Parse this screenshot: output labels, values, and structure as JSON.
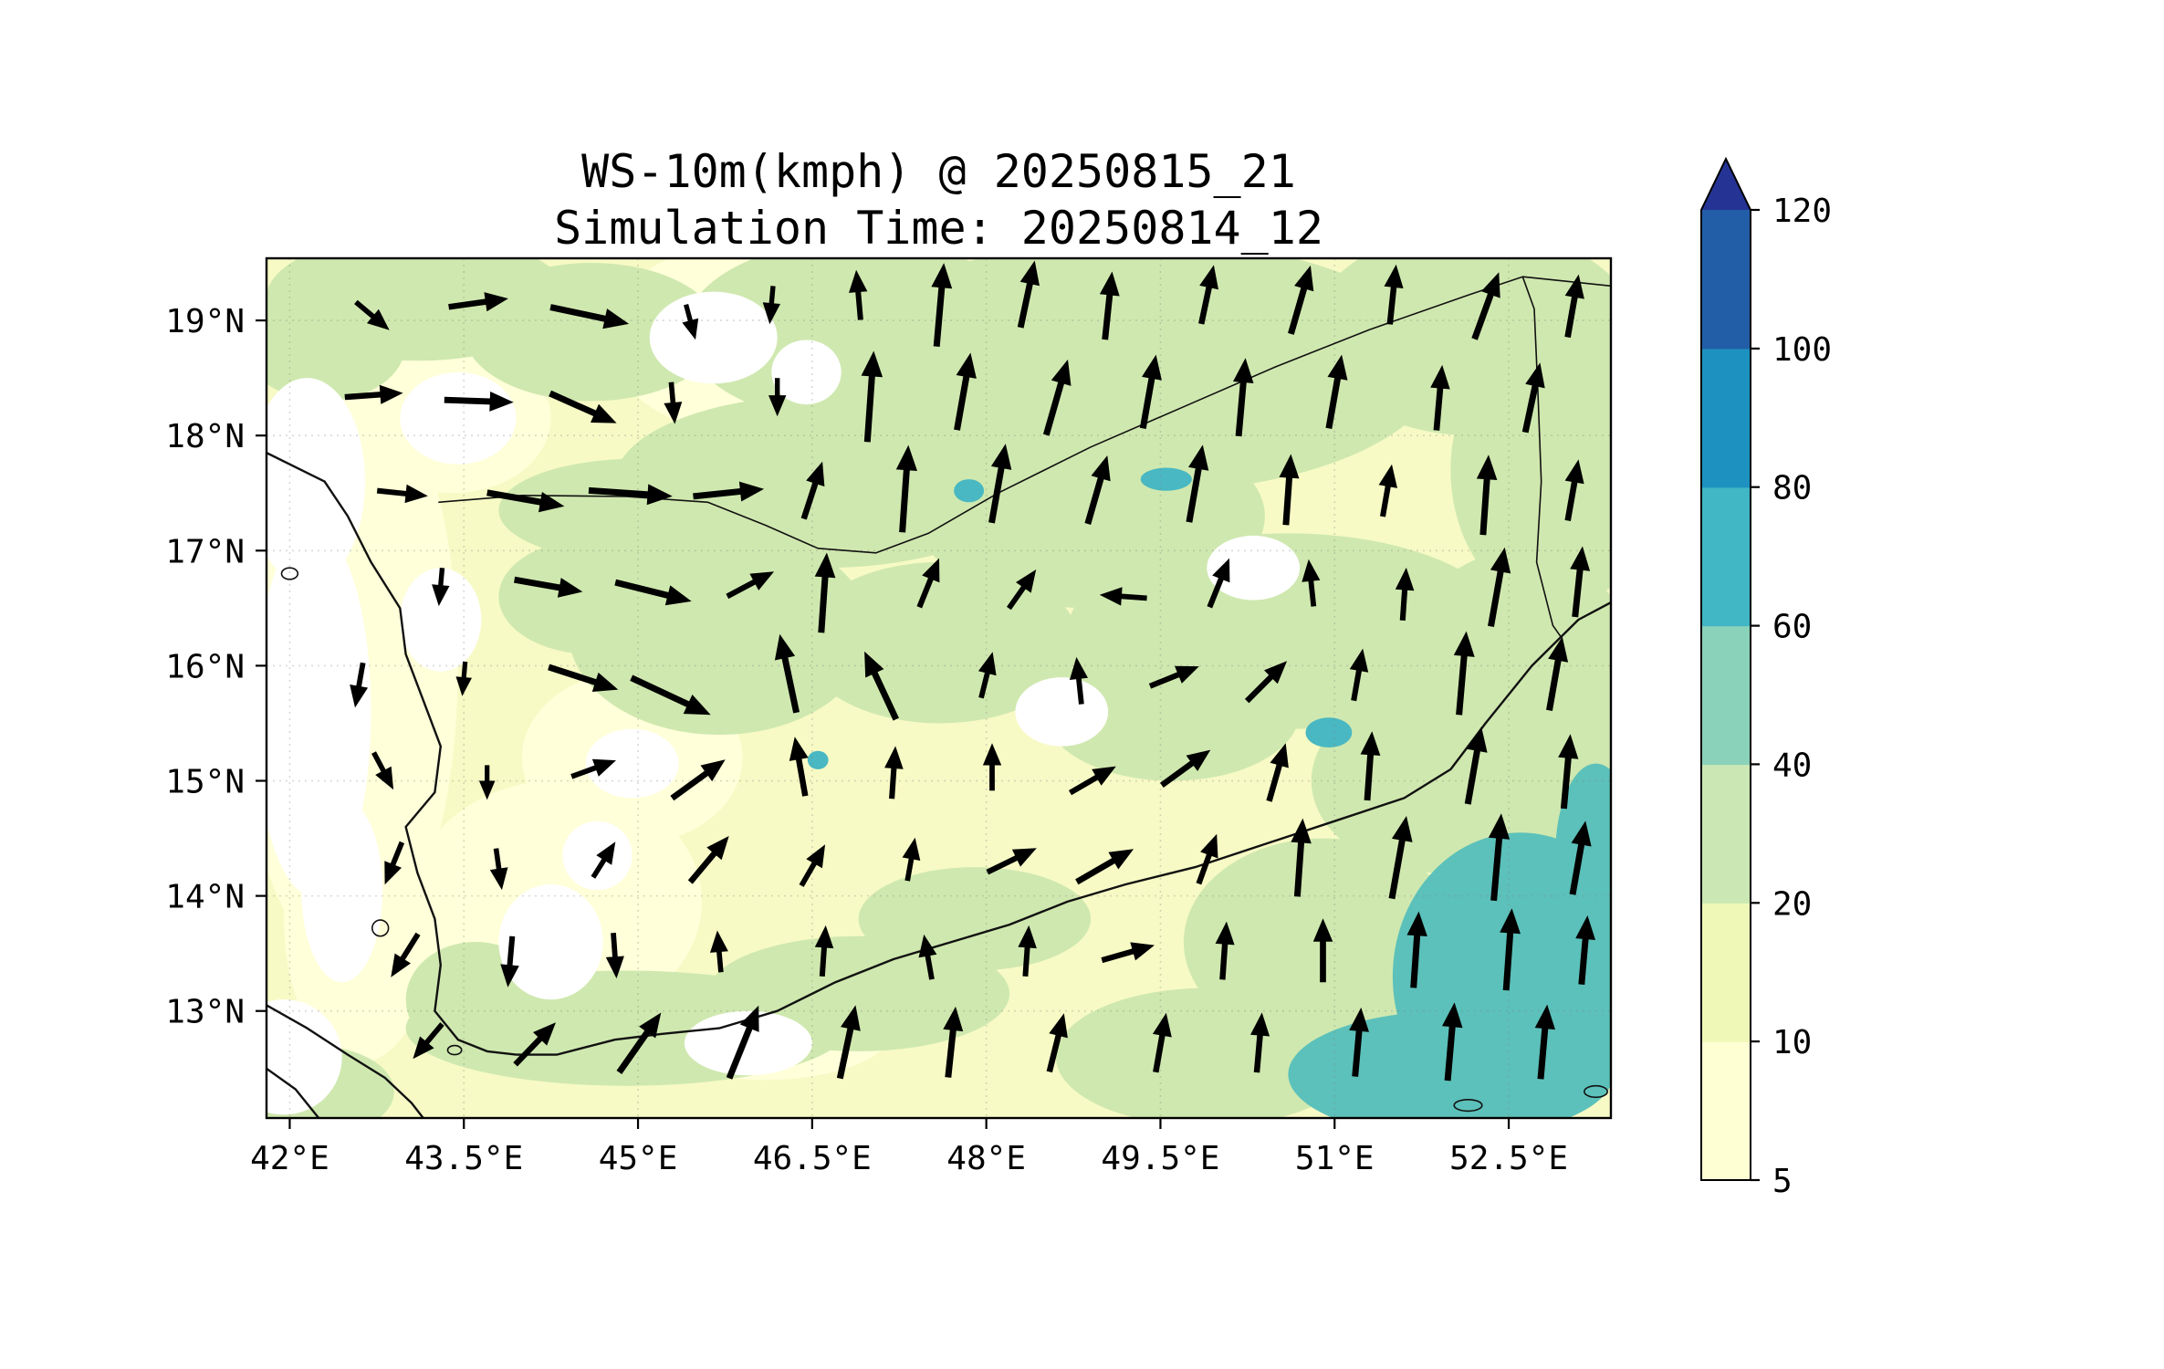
{
  "title": {
    "line1": "WS-10m(kmph) @ 20250815_21",
    "line2": "Simulation Time: 20250814_12"
  },
  "chart_data": {
    "type": "heatmap",
    "subtype": "filled-contour map with wind quiver arrows",
    "variable": "WS-10m",
    "units": "kmph",
    "valid_time": "20250815_21",
    "simulation_time": "20250814_12",
    "axes": {
      "x_tick_labels": [
        "42°E",
        "43.5°E",
        "45°E",
        "46.5°E",
        "48°E",
        "49.5°E",
        "51°E",
        "52.5°E"
      ],
      "x_tick_lons": [
        42,
        43.5,
        45,
        46.5,
        48,
        49.5,
        51,
        52.5
      ],
      "y_tick_labels": [
        "19°N",
        "18°N",
        "17°N",
        "16°N",
        "15°N",
        "14°N",
        "13°N"
      ],
      "y_tick_lats": [
        19,
        18,
        17,
        16,
        15,
        14,
        13
      ],
      "lon_range": [
        41.8,
        53.38
      ],
      "lat_range": [
        12.07,
        19.54
      ],
      "grid": "dotted"
    },
    "colorbar": {
      "levels": [
        5,
        10,
        20,
        40,
        60,
        80,
        100,
        120
      ],
      "tick_labels": [
        "5",
        "10",
        "20",
        "40",
        "60",
        "80",
        "100",
        "120"
      ],
      "segment_colors": [
        "#ffffd4",
        "#eff8b6",
        "#cbe8b4",
        "#8bd2ba",
        "#41b6c4",
        "#1d91c0",
        "#225ea8"
      ],
      "over_color": "#253494",
      "extend": "max"
    },
    "map_colors": {
      "base": "#f7fac5",
      "pale": "#ffffd9",
      "green": "#cfe8af",
      "white": "#ffffff",
      "teal": "#5cc1ba",
      "spot": "#49b8c2",
      "coast": "#111111"
    },
    "fill_regions": [
      [
        "pale",
        42.5,
        16.0,
        0.95,
        2.6
      ],
      [
        "pale",
        44.3,
        13.95,
        1.25,
        1.05
      ],
      [
        "pale",
        45.8,
        18.85,
        1.05,
        0.8
      ],
      [
        "pale",
        44.95,
        15.2,
        0.95,
        0.75
      ],
      [
        "pale",
        46.1,
        12.85,
        1.1,
        0.45
      ],
      [
        "pale",
        42.6,
        13.8,
        0.65,
        1.25
      ],
      [
        "pale",
        43.4,
        18.15,
        0.85,
        0.65
      ],
      [
        "green",
        43.1,
        19.2,
        1.3,
        0.55
      ],
      [
        "green",
        42.3,
        18.8,
        0.7,
        0.5
      ],
      [
        "green",
        44.6,
        18.9,
        1.1,
        0.6
      ],
      [
        "green",
        46.9,
        18.9,
        1.5,
        0.8
      ],
      [
        "green",
        49.3,
        18.6,
        2.6,
        1.1
      ],
      [
        "green",
        52.2,
        18.9,
        1.4,
        0.9
      ],
      [
        "green",
        52.9,
        17.7,
        0.9,
        1.2
      ],
      [
        "green",
        46.6,
        17.6,
        1.8,
        0.75
      ],
      [
        "green",
        48.9,
        17.3,
        1.5,
        0.8
      ],
      [
        "green",
        45.0,
        17.35,
        1.2,
        0.45
      ],
      [
        "green",
        45.7,
        16.3,
        1.3,
        0.9
      ],
      [
        "green",
        44.6,
        16.6,
        0.8,
        0.5
      ],
      [
        "green",
        47.6,
        16.2,
        1.2,
        0.7
      ],
      [
        "green",
        50.6,
        16.3,
        1.9,
        0.85
      ],
      [
        "green",
        52.6,
        16.2,
        0.9,
        0.8
      ],
      [
        "green",
        53.2,
        15.3,
        0.4,
        0.9
      ],
      [
        "green",
        49.6,
        15.6,
        1.1,
        0.6
      ],
      [
        "green",
        51.9,
        15.0,
        1.1,
        0.8
      ],
      [
        "green",
        52.8,
        14.0,
        0.7,
        1.3
      ],
      [
        "green",
        50.9,
        13.6,
        1.2,
        0.9
      ],
      [
        "green",
        49.9,
        12.6,
        1.3,
        0.6
      ],
      [
        "green",
        47.9,
        13.8,
        1.0,
        0.45
      ],
      [
        "green",
        44.9,
        12.85,
        1.9,
        0.5
      ],
      [
        "green",
        46.9,
        13.15,
        1.3,
        0.5
      ],
      [
        "green",
        43.6,
        13.1,
        0.6,
        0.5
      ],
      [
        "green",
        42.2,
        12.3,
        0.7,
        0.4
      ],
      [
        "white",
        42.15,
        17.6,
        0.5,
        0.9
      ],
      [
        "white",
        42.2,
        15.6,
        0.5,
        1.6
      ],
      [
        "white",
        42.45,
        14.05,
        0.35,
        0.8
      ],
      [
        "white",
        43.3,
        16.4,
        0.35,
        0.45
      ],
      [
        "white",
        44.25,
        13.6,
        0.45,
        0.5
      ],
      [
        "white",
        44.65,
        14.35,
        0.3,
        0.3
      ],
      [
        "white",
        45.95,
        12.72,
        0.55,
        0.28
      ],
      [
        "white",
        45.65,
        18.85,
        0.55,
        0.4
      ],
      [
        "white",
        46.45,
        18.55,
        0.3,
        0.28
      ],
      [
        "white",
        48.65,
        15.6,
        0.4,
        0.3
      ],
      [
        "white",
        44.95,
        15.15,
        0.4,
        0.3
      ],
      [
        "white",
        50.3,
        16.85,
        0.4,
        0.28
      ],
      [
        "white",
        43.45,
        18.15,
        0.5,
        0.4
      ],
      [
        "white",
        41.95,
        12.6,
        0.5,
        0.5
      ],
      [
        "teal",
        52.6,
        13.3,
        1.1,
        1.25
      ],
      [
        "teal",
        52.0,
        12.45,
        1.4,
        0.55
      ],
      [
        "teal",
        53.25,
        14.35,
        0.35,
        0.8
      ],
      [
        "spot",
        47.85,
        17.52,
        0.13,
        0.1
      ],
      [
        "spot",
        49.55,
        17.62,
        0.22,
        0.1
      ],
      [
        "spot",
        50.95,
        15.42,
        0.2,
        0.13
      ],
      [
        "spot",
        46.55,
        15.18,
        0.09,
        0.08
      ]
    ],
    "coastlines": [
      {
        "name": "arabian-west-south-coast",
        "pts": [
          [
            41.8,
            17.85
          ],
          [
            42.3,
            17.6
          ],
          [
            42.5,
            17.3
          ],
          [
            42.7,
            16.9
          ],
          [
            42.95,
            16.5
          ],
          [
            43.0,
            16.1
          ],
          [
            43.15,
            15.7
          ],
          [
            43.3,
            15.3
          ],
          [
            43.25,
            14.9
          ],
          [
            43.0,
            14.6
          ],
          [
            43.1,
            14.2
          ],
          [
            43.25,
            13.8
          ],
          [
            43.3,
            13.4
          ],
          [
            43.25,
            13.0
          ],
          [
            43.45,
            12.75
          ],
          [
            43.7,
            12.65
          ],
          [
            43.95,
            12.62
          ],
          [
            44.3,
            12.62
          ],
          [
            44.8,
            12.75
          ],
          [
            45.2,
            12.8
          ],
          [
            45.7,
            12.85
          ],
          [
            46.2,
            13.0
          ],
          [
            46.7,
            13.25
          ],
          [
            47.2,
            13.45
          ],
          [
            47.7,
            13.6
          ],
          [
            48.2,
            13.75
          ],
          [
            48.7,
            13.95
          ],
          [
            49.2,
            14.1
          ],
          [
            49.8,
            14.25
          ],
          [
            50.4,
            14.45
          ],
          [
            51.0,
            14.65
          ],
          [
            51.6,
            14.85
          ],
          [
            52.0,
            15.1
          ],
          [
            52.3,
            15.5
          ],
          [
            52.7,
            16.0
          ],
          [
            53.1,
            16.4
          ],
          [
            53.38,
            16.55
          ]
        ]
      },
      {
        "name": "african-coast",
        "pts": [
          [
            41.8,
            13.05
          ],
          [
            42.15,
            12.85
          ],
          [
            42.5,
            12.62
          ],
          [
            42.82,
            12.42
          ],
          [
            43.05,
            12.2
          ],
          [
            43.15,
            12.07
          ]
        ]
      },
      {
        "name": "african-coast-2",
        "pts": [
          [
            41.8,
            12.5
          ],
          [
            42.05,
            12.32
          ],
          [
            42.25,
            12.07
          ]
        ]
      }
    ],
    "borders": [
      {
        "name": "saudi-yemen-oman-border",
        "pts": [
          [
            43.28,
            17.42
          ],
          [
            44.0,
            17.48
          ],
          [
            44.9,
            17.47
          ],
          [
            45.6,
            17.42
          ],
          [
            46.1,
            17.22
          ],
          [
            46.55,
            17.02
          ],
          [
            47.05,
            16.98
          ],
          [
            47.5,
            17.15
          ],
          [
            48.1,
            17.5
          ],
          [
            48.9,
            17.9
          ],
          [
            49.7,
            18.25
          ],
          [
            50.5,
            18.6
          ],
          [
            51.3,
            18.92
          ],
          [
            52.15,
            19.22
          ],
          [
            52.62,
            19.38
          ],
          [
            53.38,
            19.3
          ]
        ]
      },
      {
        "name": "yemen-oman-border",
        "pts": [
          [
            52.62,
            19.38
          ],
          [
            52.72,
            19.1
          ],
          [
            52.75,
            18.4
          ],
          [
            52.78,
            17.6
          ],
          [
            52.74,
            16.9
          ],
          [
            52.88,
            16.35
          ],
          [
            52.95,
            16.25
          ]
        ]
      }
    ],
    "islands": [
      [
        42.78,
        13.72,
        0.07,
        0.07
      ],
      [
        43.42,
        12.66,
        0.06,
        0.04
      ],
      [
        42.0,
        16.8,
        0.07,
        0.05
      ],
      [
        52.15,
        12.18,
        0.12,
        0.05
      ],
      [
        53.25,
        12.3,
        0.1,
        0.05
      ]
    ],
    "arrows_format": "[lon, lat, direction_deg (0=E, 90=N, CCW), length_px]",
    "arrows": [
      [
        42.7,
        19.05,
        -40,
        48
      ],
      [
        43.6,
        19.15,
        8,
        66
      ],
      [
        44.55,
        19.05,
        -12,
        88
      ],
      [
        45.45,
        19.0,
        -75,
        40
      ],
      [
        46.15,
        19.15,
        -95,
        42
      ],
      [
        46.9,
        19.2,
        95,
        55
      ],
      [
        47.6,
        19.1,
        85,
        92
      ],
      [
        48.35,
        19.2,
        78,
        75
      ],
      [
        49.05,
        19.1,
        84,
        75
      ],
      [
        49.9,
        19.2,
        78,
        66
      ],
      [
        50.7,
        19.15,
        74,
        78
      ],
      [
        51.5,
        19.2,
        84,
        66
      ],
      [
        52.3,
        19.1,
        70,
        78
      ],
      [
        53.05,
        19.1,
        80,
        70
      ],
      [
        42.7,
        18.35,
        4,
        64
      ],
      [
        43.6,
        18.3,
        -2,
        76
      ],
      [
        44.5,
        18.25,
        -24,
        80
      ],
      [
        45.3,
        18.3,
        -85,
        46
      ],
      [
        46.2,
        18.35,
        -90,
        42
      ],
      [
        47.0,
        18.3,
        86,
        100
      ],
      [
        47.8,
        18.35,
        80,
        86
      ],
      [
        48.6,
        18.3,
        74,
        86
      ],
      [
        49.4,
        18.35,
        80,
        82
      ],
      [
        50.2,
        18.3,
        85,
        86
      ],
      [
        51.0,
        18.35,
        80,
        82
      ],
      [
        51.9,
        18.3,
        85,
        72
      ],
      [
        52.7,
        18.3,
        78,
        78
      ],
      [
        42.95,
        17.5,
        -6,
        56
      ],
      [
        44.0,
        17.45,
        -10,
        86
      ],
      [
        44.9,
        17.5,
        -4,
        92
      ],
      [
        45.75,
        17.5,
        6,
        78
      ],
      [
        46.5,
        17.5,
        72,
        66
      ],
      [
        47.3,
        17.5,
        86,
        96
      ],
      [
        48.1,
        17.55,
        80,
        88
      ],
      [
        48.95,
        17.5,
        74,
        78
      ],
      [
        49.8,
        17.55,
        80,
        86
      ],
      [
        50.6,
        17.5,
        86,
        78
      ],
      [
        51.45,
        17.5,
        80,
        58
      ],
      [
        52.3,
        17.45,
        86,
        88
      ],
      [
        53.05,
        17.5,
        80,
        68
      ],
      [
        43.3,
        16.7,
        -95,
        42
      ],
      [
        44.2,
        16.7,
        -10,
        76
      ],
      [
        45.1,
        16.65,
        -14,
        86
      ],
      [
        45.95,
        16.7,
        28,
        58
      ],
      [
        46.6,
        16.6,
        86,
        88
      ],
      [
        47.5,
        16.7,
        68,
        58
      ],
      [
        48.3,
        16.65,
        55,
        52
      ],
      [
        49.2,
        16.6,
        176,
        52
      ],
      [
        50.0,
        16.7,
        68,
        58
      ],
      [
        50.8,
        16.7,
        96,
        52
      ],
      [
        51.6,
        16.6,
        86,
        58
      ],
      [
        52.4,
        16.65,
        80,
        88
      ],
      [
        53.1,
        16.7,
        84,
        78
      ],
      [
        42.6,
        15.85,
        -100,
        50
      ],
      [
        43.5,
        15.9,
        -95,
        38
      ],
      [
        44.5,
        15.9,
        -18,
        80
      ],
      [
        45.25,
        15.75,
        -25,
        96
      ],
      [
        46.3,
        15.9,
        102,
        88
      ],
      [
        47.1,
        15.8,
        115,
        82
      ],
      [
        48.0,
        15.9,
        76,
        52
      ],
      [
        48.8,
        15.85,
        96,
        52
      ],
      [
        49.6,
        15.9,
        22,
        58
      ],
      [
        50.4,
        15.85,
        45,
        62
      ],
      [
        51.2,
        15.9,
        80,
        58
      ],
      [
        52.1,
        15.9,
        85,
        92
      ],
      [
        52.9,
        15.9,
        80,
        82
      ],
      [
        42.8,
        15.1,
        -62,
        46
      ],
      [
        43.7,
        15.0,
        -90,
        38
      ],
      [
        44.6,
        15.1,
        20,
        52
      ],
      [
        45.5,
        15.0,
        36,
        72
      ],
      [
        46.4,
        15.1,
        100,
        66
      ],
      [
        47.2,
        15.05,
        86,
        58
      ],
      [
        48.05,
        15.1,
        90,
        52
      ],
      [
        48.9,
        15.0,
        30,
        58
      ],
      [
        49.7,
        15.1,
        36,
        66
      ],
      [
        50.5,
        15.05,
        74,
        66
      ],
      [
        51.3,
        15.1,
        86,
        76
      ],
      [
        52.2,
        15.1,
        80,
        86
      ],
      [
        53.0,
        15.05,
        85,
        82
      ],
      [
        42.9,
        14.3,
        -112,
        50
      ],
      [
        43.8,
        14.25,
        -82,
        46
      ],
      [
        44.7,
        14.3,
        58,
        46
      ],
      [
        45.6,
        14.3,
        50,
        66
      ],
      [
        46.5,
        14.25,
        60,
        52
      ],
      [
        47.35,
        14.3,
        80,
        48
      ],
      [
        48.2,
        14.3,
        26,
        60
      ],
      [
        49.0,
        14.25,
        30,
        72
      ],
      [
        49.9,
        14.3,
        70,
        58
      ],
      [
        50.7,
        14.3,
        86,
        86
      ],
      [
        51.55,
        14.3,
        80,
        92
      ],
      [
        52.4,
        14.3,
        85,
        96
      ],
      [
        53.1,
        14.3,
        80,
        82
      ],
      [
        43.0,
        13.5,
        -122,
        56
      ],
      [
        43.9,
        13.45,
        -95,
        56
      ],
      [
        44.8,
        13.5,
        -86,
        50
      ],
      [
        45.7,
        13.5,
        95,
        46
      ],
      [
        46.6,
        13.5,
        86,
        56
      ],
      [
        47.5,
        13.45,
        100,
        50
      ],
      [
        48.35,
        13.5,
        86,
        56
      ],
      [
        49.2,
        13.5,
        16,
        60
      ],
      [
        50.05,
        13.5,
        86,
        64
      ],
      [
        50.9,
        13.5,
        90,
        70
      ],
      [
        51.7,
        13.5,
        86,
        84
      ],
      [
        52.5,
        13.5,
        86,
        90
      ],
      [
        53.15,
        13.5,
        85,
        76
      ],
      [
        43.2,
        12.75,
        -130,
        50
      ],
      [
        44.1,
        12.7,
        46,
        64
      ],
      [
        45.0,
        12.7,
        55,
        80
      ],
      [
        45.9,
        12.7,
        68,
        86
      ],
      [
        46.8,
        12.7,
        78,
        82
      ],
      [
        47.7,
        12.7,
        84,
        78
      ],
      [
        48.6,
        12.7,
        76,
        66
      ],
      [
        49.5,
        12.7,
        80,
        66
      ],
      [
        50.35,
        12.7,
        85,
        66
      ],
      [
        51.2,
        12.7,
        85,
        76
      ],
      [
        52.0,
        12.7,
        85,
        86
      ],
      [
        52.8,
        12.7,
        85,
        82
      ]
    ]
  }
}
